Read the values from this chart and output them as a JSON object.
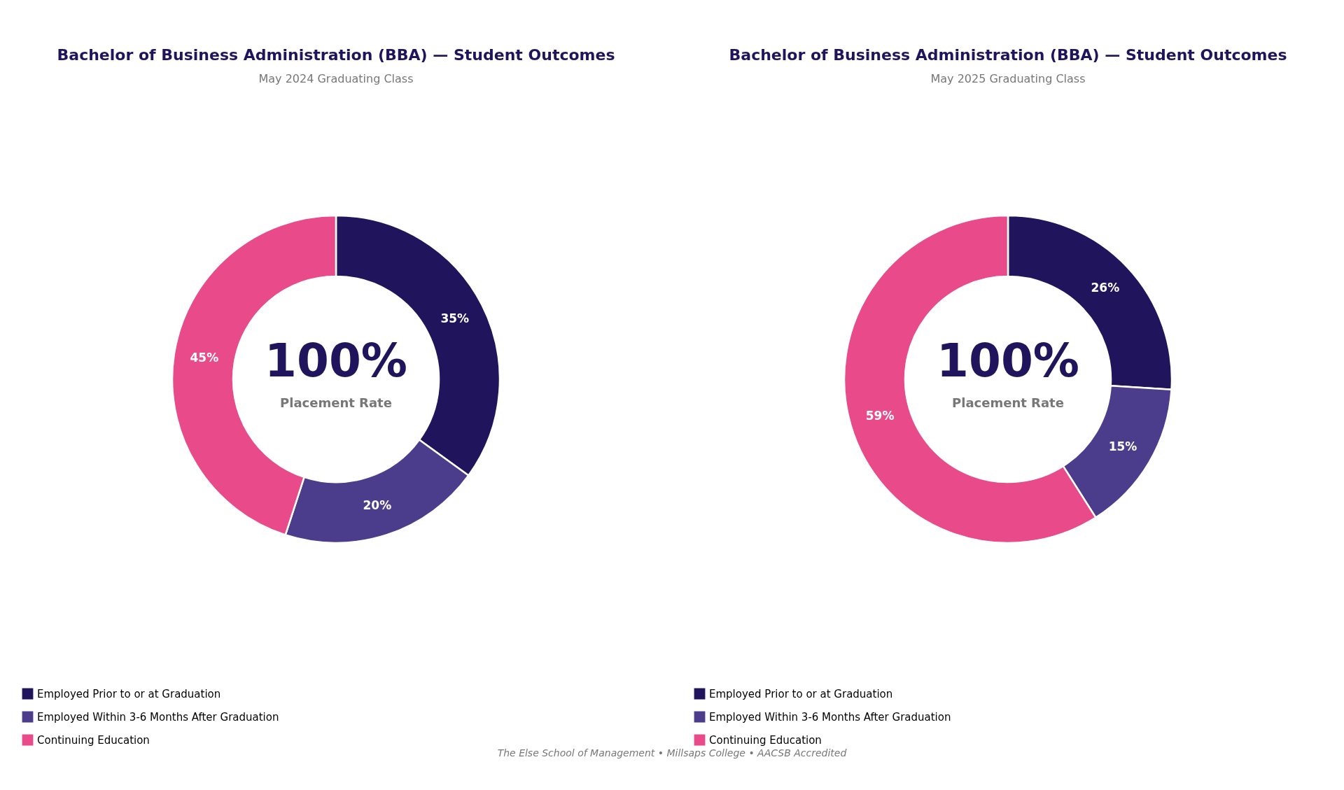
{
  "chart_data": [
    {
      "type": "donut",
      "title": "Bachelor of Business Administration (BBA) — Student Outcomes",
      "subtitle": "May 2024 Graduating Class",
      "categories": [
        "Employed Prior to or at Graduation",
        "Employed Within 3-6 Months After Graduation",
        "Continuing Education"
      ],
      "values": [
        35,
        20,
        45
      ],
      "colors": [
        "#20155c",
        "#4b3d8c",
        "#e84a8a"
      ],
      "value_labels": [
        "35%",
        "20%",
        "45%"
      ],
      "legend": "bottom",
      "annotations": [
        "100%",
        "Placement Rate",
        "The Else School of Management  •  Millsaps College  •  AACSB Accredited"
      ]
    },
    {
      "type": "donut",
      "title": "Bachelor of Business Administration (BBA) — Student Outcomes",
      "subtitle": "May 2025 Graduating Class",
      "categories": [
        "Employed Prior to or at Graduation",
        "Employed Within 3-6 Months After Graduation",
        "Continuing Education"
      ],
      "values": [
        26,
        15,
        59
      ],
      "colors": [
        "#20155c",
        "#4b3d8c",
        "#e84a8a"
      ],
      "value_labels": [
        "26%",
        "15%",
        "59%"
      ],
      "legend": "bottom",
      "annotations": [
        "100%",
        "Placement Rate"
      ]
    }
  ]
}
